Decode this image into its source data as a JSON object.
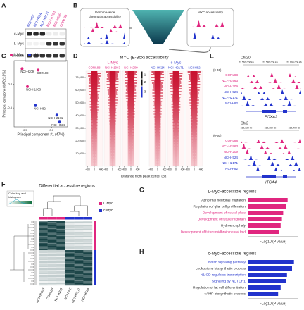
{
  "panels": {
    "A": {
      "letter": "A",
      "cell_lines": [
        "NCI-H82",
        "NCI-H524",
        "NCI-H2171",
        "NCI-H1963",
        "NCI-H209",
        "CORL88"
      ],
      "cell_line_colors": [
        "#2233cc",
        "#2233cc",
        "#2233cc",
        "#e0267f",
        "#e0267f",
        "#e0267f"
      ],
      "proteins": [
        "c-Myc",
        "L-Myc",
        "Vinculin"
      ]
    },
    "B": {
      "letter": "B",
      "left_box": [
        "Genome-wide",
        "chromatin accessibility"
      ],
      "right_box": "MYC accessibility"
    },
    "C": {
      "letter": "C",
      "type": "scatter",
      "series": [
        {
          "name": "L-Myc",
          "color": "#e0267f",
          "points": [
            {
              "label": "NCI-H209",
              "x": -0.55,
              "y": 0.33
            },
            {
              "label": "CORL88",
              "x": -0.25,
              "y": 0.3
            },
            {
              "label": "NCI-H1963",
              "x": -0.45,
              "y": -0.05
            }
          ]
        },
        {
          "name": "c-Myc",
          "color": "#2233cc",
          "points": [
            {
              "label": "NCI-H82",
              "x": -0.3,
              "y": -0.45
            },
            {
              "label": "NCI-H2171",
              "x": 0.1,
              "y": -0.65
            },
            {
              "label": "NCI-H524",
              "x": 0.15,
              "y": -0.8
            }
          ]
        }
      ],
      "x_label": "Principal component #1 (47%)",
      "y_label": "Principal component #2 (18%)",
      "xlim": [
        -0.7,
        0.3
      ],
      "ylim": [
        -0.9,
        0.5
      ],
      "xticks": [
        -0.5,
        {
          "value": 0,
          "label": "0.0"
        }
      ],
      "yticks": [
        -0.5,
        {
          "value": 0,
          "label": "0.0"
        }
      ]
    },
    "D": {
      "letter": "D",
      "title": "MYC (E-Box) accessibility",
      "groups": [
        {
          "name": "L-Myc",
          "color": "#e0267f",
          "columns": [
            "CORL88",
            "NCI-H1963",
            "NCI-H209"
          ]
        },
        {
          "name": "c-Myc",
          "color": "#2233cc",
          "columns": [
            "NCI-H524",
            "NCI-H2171",
            "NCI-H82"
          ]
        }
      ],
      "clusters": [
        1,
        2,
        3
      ],
      "ylim": [
        0,
        75000
      ],
      "yticks": [
        {
          "value": 70000,
          "label": "70,000"
        },
        {
          "value": 60000,
          "label": "60,000"
        },
        {
          "value": 50000,
          "label": "50,000"
        },
        {
          "value": 40000,
          "label": "40,000"
        },
        {
          "value": 30000,
          "label": "30,000"
        },
        {
          "value": 20000,
          "label": "20,000"
        },
        {
          "value": 10000,
          "label": "10,000"
        }
      ],
      "xlim": [
        -500,
        500
      ],
      "xticks": [
        -400,
        0,
        400
      ],
      "x_label": "Distance from peak center (bp)"
    },
    "E": {
      "letter": "E",
      "loci": [
        {
          "chromosome": "Chr20",
          "coordinates": [
            "22,560,000 kb",
            "22,580,000 kb",
            "22,600,000 kb"
          ],
          "range": "(0-40)",
          "tracks": [
            "CORL88",
            "NCI-H1963",
            "NCI-H209",
            "NCI-H524",
            "NCI-H2171",
            "NCI-H82"
          ],
          "track_colors": [
            "#e0267f",
            "#e0267f",
            "#e0267f",
            "#2233cc",
            "#2233cc",
            "#2233cc"
          ],
          "gene": "FOXA2"
        },
        {
          "chromosome": "Chr2",
          "coordinates": [
            "182,320 kb",
            "182,360 kb",
            "182,400 kb"
          ],
          "range": "(0-50)",
          "tracks": [
            "CORL88",
            "NCI-H1963",
            "NCI-H209",
            "NCI-H524",
            "NCI-H2171",
            "NCI-H82"
          ],
          "track_colors": [
            "#e0267f",
            "#e0267f",
            "#e0267f",
            "#2233cc",
            "#2233cc",
            "#2233cc"
          ],
          "gene": "ITGA4"
        }
      ]
    },
    "F": {
      "letter": "F",
      "title": "Differential accessible regions",
      "color_key": [
        "Color key and",
        "histogram"
      ],
      "legend": [
        {
          "name": "L-Myc",
          "color": "#e0267f"
        },
        {
          "name": "c-Myc",
          "color": "#2233cc"
        }
      ],
      "columns": [
        "NCI-H1963",
        "CORL88",
        "NCI-H209",
        "NCI-H82",
        "NCI-H2171",
        "NCI-H524"
      ]
    },
    "G": {
      "letter": "G",
      "type": "bar",
      "title": "L-Myc–accessible regions",
      "categories": [
        "Abnormal neuronal migration",
        "Regulation of glial cell proliferation",
        "Development of neural plate",
        "Development of future midbrain",
        "Hydroencephaly",
        "Development of future midbrain neural fold"
      ],
      "label_colors": [
        "#222222",
        "#222222",
        "#e0267f",
        "#e0267f",
        "#222222",
        "#e0267f"
      ],
      "values": [
        6.3,
        6.0,
        5.6,
        5.4,
        5.2,
        5.0
      ],
      "color": "#e0267f",
      "xlim": [
        0,
        8
      ],
      "x_label": "−Log10 (P value)"
    },
    "H": {
      "letter": "H",
      "type": "bar",
      "title": "c-Myc–accessible regions",
      "categories": [
        "Notch signaling pathway",
        "Leukotriene biosynthetic process",
        "N1ICD regulates transcription",
        "Signaling by NOTCH1",
        "Regulation of fat cell differentiation",
        "cAMP biosynthetic process"
      ],
      "label_colors": [
        "#2233cc",
        "#222222",
        "#2233cc",
        "#2233cc",
        "#222222",
        "#222222"
      ],
      "values": [
        7.3,
        7.0,
        6.2,
        6.0,
        5.2,
        4.8
      ],
      "color": "#2233cc",
      "xlim": [
        0,
        8
      ],
      "x_label": "−Log10 (P value)"
    }
  }
}
